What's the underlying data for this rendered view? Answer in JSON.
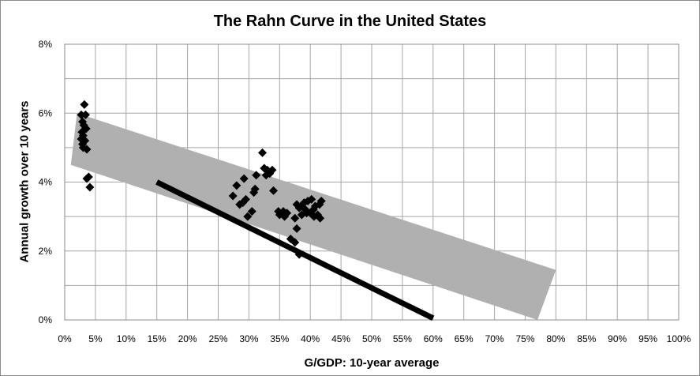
{
  "chart_data": {
    "type": "scatter",
    "title": "The Rahn Curve in the United States",
    "xlabel": "G/GDP: 10-year average",
    "ylabel": "Annual growth over 10 years",
    "xlim": [
      0,
      100
    ],
    "ylim": [
      0,
      8
    ],
    "x_ticks": [
      "0%",
      "5%",
      "10%",
      "15%",
      "20%",
      "25%",
      "30%",
      "35%",
      "40%",
      "45%",
      "50%",
      "55%",
      "60%",
      "65%",
      "70%",
      "75%",
      "80%",
      "85%",
      "90%",
      "95%",
      "100%"
    ],
    "y_ticks": [
      "0%",
      "2%",
      "4%",
      "6%",
      "8%"
    ],
    "grid": true,
    "legend": "none",
    "colors": {
      "points": "#000000",
      "band": "#b0b0b0",
      "line": "#000000",
      "grid": "#a6a6a6"
    },
    "series": [
      {
        "marker": "diamond",
        "points": [
          [
            3.2,
            6.25
          ],
          [
            2.7,
            5.95
          ],
          [
            3.4,
            5.95
          ],
          [
            2.9,
            5.75
          ],
          [
            3.1,
            5.65
          ],
          [
            3.5,
            5.55
          ],
          [
            2.8,
            5.45
          ],
          [
            3.0,
            5.35
          ],
          [
            2.7,
            5.25
          ],
          [
            3.3,
            5.2
          ],
          [
            2.9,
            5.1
          ],
          [
            3.0,
            5.0
          ],
          [
            3.6,
            4.95
          ],
          [
            3.9,
            4.15
          ],
          [
            3.6,
            4.1
          ],
          [
            4.1,
            3.85
          ],
          [
            32.2,
            4.85
          ],
          [
            32.5,
            4.4
          ],
          [
            33.0,
            4.35
          ],
          [
            33.8,
            4.35
          ],
          [
            31.2,
            4.2
          ],
          [
            33.4,
            4.25
          ],
          [
            32.8,
            4.2
          ],
          [
            29.2,
            4.1
          ],
          [
            28.0,
            3.9
          ],
          [
            31.0,
            3.8
          ],
          [
            34.0,
            3.75
          ],
          [
            30.8,
            3.7
          ],
          [
            27.4,
            3.6
          ],
          [
            29.5,
            3.5
          ],
          [
            28.5,
            3.35
          ],
          [
            29.0,
            3.4
          ],
          [
            30.5,
            3.15
          ],
          [
            29.8,
            3.0
          ],
          [
            35.0,
            3.05
          ],
          [
            35.6,
            3.15
          ],
          [
            36.2,
            3.1
          ],
          [
            34.8,
            3.15
          ],
          [
            35.8,
            3.0
          ],
          [
            37.8,
            3.35
          ],
          [
            38.5,
            3.3
          ],
          [
            39.0,
            3.4
          ],
          [
            39.6,
            3.45
          ],
          [
            40.2,
            3.5
          ],
          [
            40.8,
            3.3
          ],
          [
            41.5,
            3.35
          ],
          [
            41.8,
            3.45
          ],
          [
            38.2,
            3.25
          ],
          [
            39.2,
            3.2
          ],
          [
            40.0,
            3.1
          ],
          [
            40.6,
            3.0
          ],
          [
            41.2,
            3.05
          ],
          [
            41.6,
            2.95
          ],
          [
            40.5,
            3.2
          ],
          [
            38.6,
            3.05
          ],
          [
            39.4,
            3.1
          ],
          [
            37.5,
            2.95
          ],
          [
            37.8,
            2.65
          ],
          [
            36.8,
            2.35
          ],
          [
            37.5,
            2.25
          ],
          [
            38.2,
            1.9
          ]
        ]
      },
      {
        "name": "",
        "type": "line",
        "points": [
          [
            15,
            4.0
          ],
          [
            60,
            0.05
          ]
        ]
      }
    ],
    "band": {
      "lower": [
        [
          1,
          4.5
        ],
        [
          77,
          0.0
        ]
      ],
      "upper": [
        [
          2,
          6.0
        ],
        [
          80,
          1.45
        ]
      ]
    }
  }
}
